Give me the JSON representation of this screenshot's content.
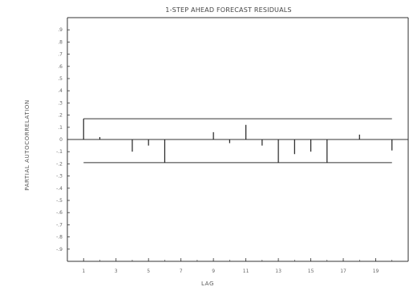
{
  "chart_data": {
    "type": "bar",
    "title": "1-STEP AHEAD FORECAST RESIDUALS",
    "xlabel": "LAG",
    "ylabel": "PARTIAL AUTOCORRELATION",
    "x_ticks": [
      "1",
      "3",
      "5",
      "7",
      "9",
      "11",
      "13",
      "15",
      "17",
      "19"
    ],
    "y_ticks": [
      ".9",
      ".8",
      ".7",
      ".6",
      ".5",
      ".4",
      ".3",
      ".2",
      ".1",
      "0",
      "-.1",
      "-.2",
      "-.3",
      "-.4",
      "-.5",
      "-.6",
      "-.7",
      "-.8",
      "-.9"
    ],
    "xlim": [
      0,
      21
    ],
    "ylim": [
      -1,
      1
    ],
    "lags": [
      1,
      2,
      3,
      4,
      5,
      6,
      7,
      8,
      9,
      10,
      11,
      12,
      13,
      14,
      15,
      16,
      17,
      18,
      19,
      20
    ],
    "values": [
      0.17,
      0.02,
      0.0,
      -0.1,
      -0.05,
      -0.19,
      0.0,
      0.0,
      0.06,
      -0.03,
      0.12,
      -0.05,
      -0.19,
      -0.12,
      -0.1,
      -0.19,
      0.0,
      0.04,
      0.0,
      -0.09
    ],
    "confidence_bounds": [
      0.17,
      -0.19
    ],
    "grid": false,
    "legend": "none"
  },
  "colors": {
    "axis": "#333333",
    "bar": "#222222",
    "bound": "#333333"
  }
}
